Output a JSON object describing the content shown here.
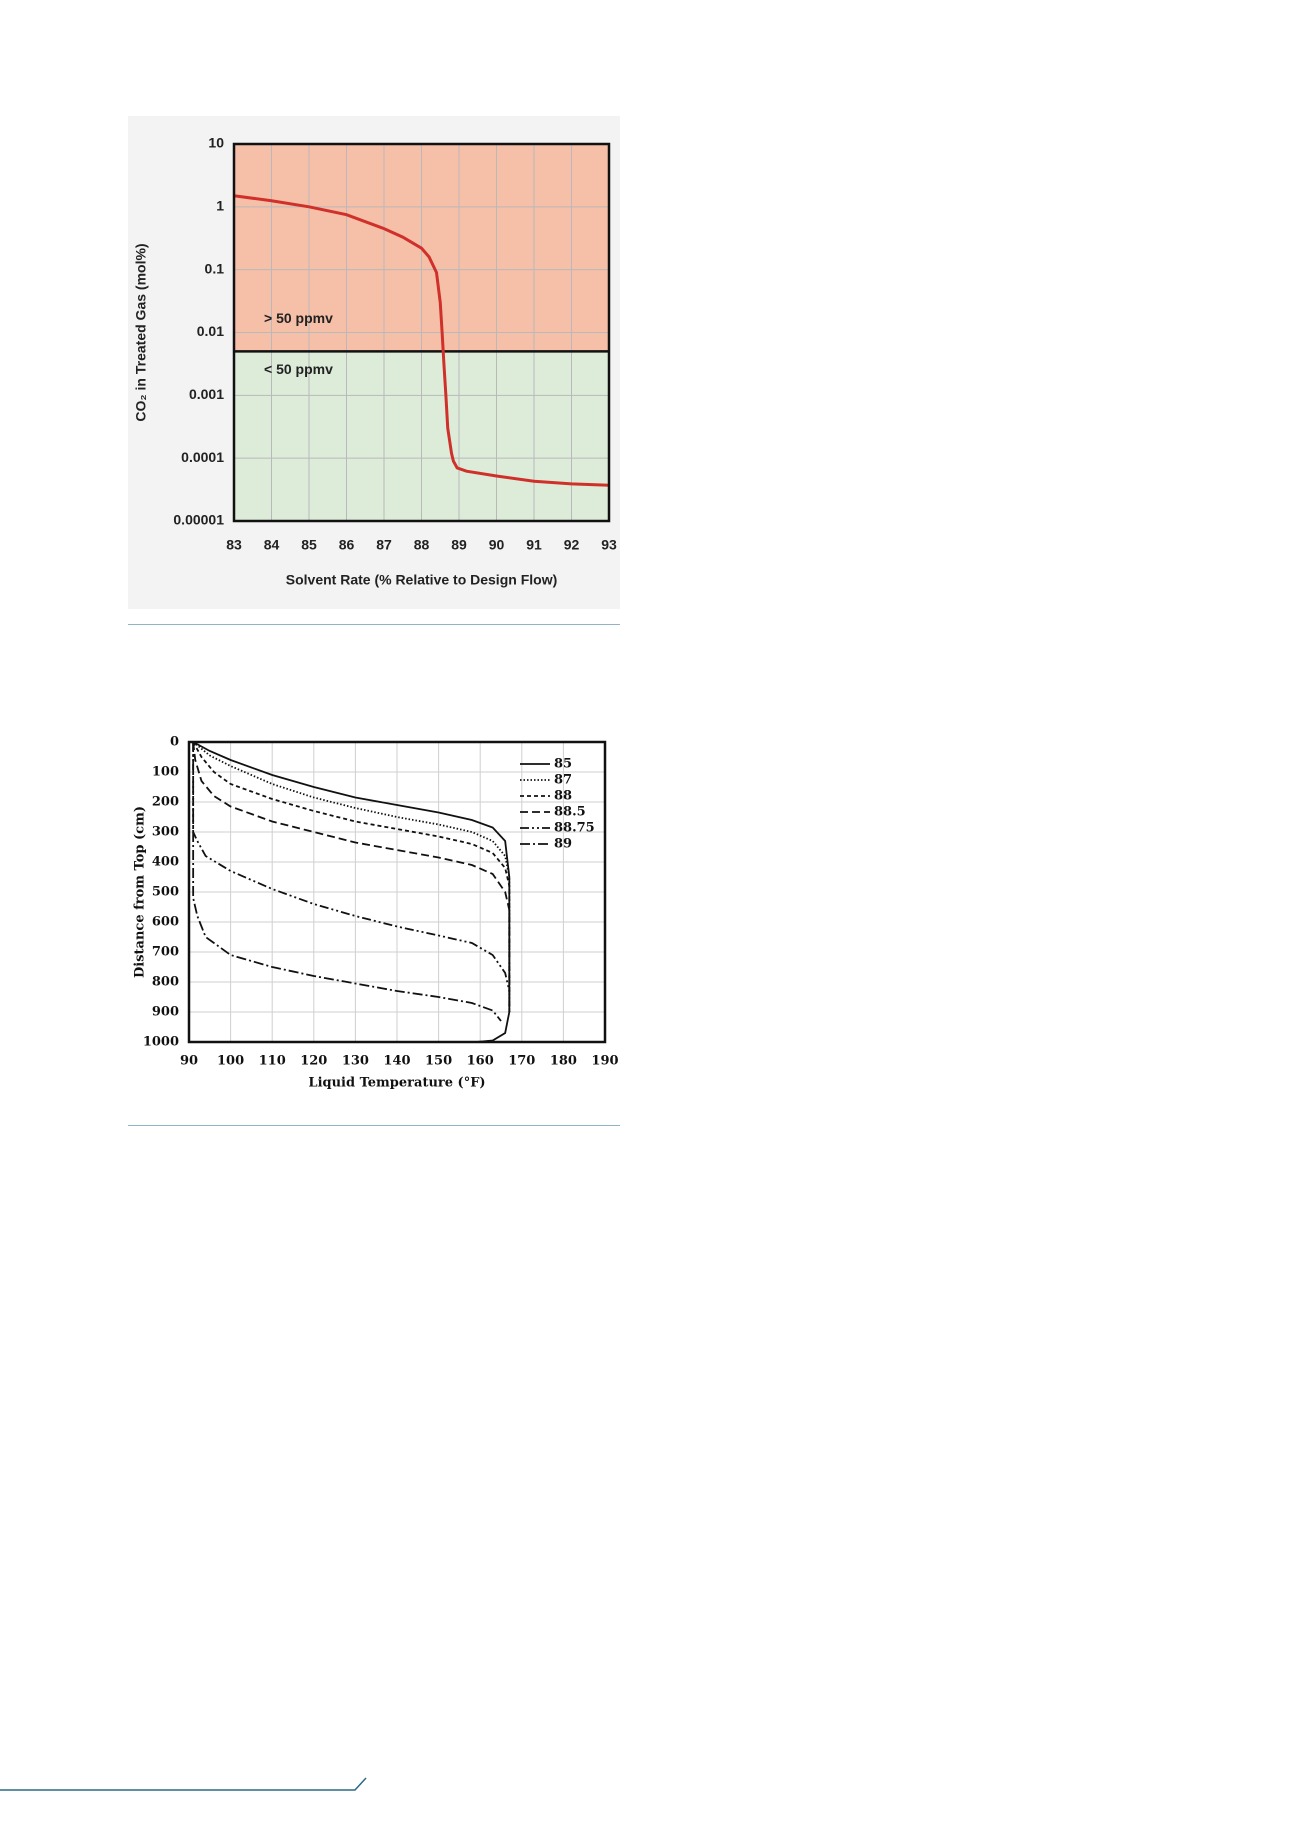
{
  "chart_data": [
    {
      "type": "line",
      "x_label": "Solvent Rate (% Relative to Design Flow)",
      "y_label": "CO₂ in Treated Gas (mol%)",
      "x": [
        83,
        84,
        85,
        86,
        87,
        87.5,
        88,
        88.2,
        88.4,
        88.5,
        88.55,
        88.6,
        88.65,
        88.7,
        88.8,
        88.85,
        88.95,
        89.2,
        90,
        91,
        92,
        93
      ],
      "values": [
        1.5,
        1.25,
        1.0,
        0.75,
        0.45,
        0.33,
        0.22,
        0.16,
        0.09,
        0.03,
        0.01,
        0.003,
        0.001,
        0.0003,
        0.00012,
        9e-05,
        7e-05,
        6.2e-05,
        5.2e-05,
        4.3e-05,
        3.9e-05,
        3.7e-05
      ],
      "color": "#d0302a",
      "xlim": [
        83,
        93
      ],
      "xticks": [
        83,
        84,
        85,
        86,
        87,
        88,
        89,
        90,
        91,
        92,
        93
      ],
      "ylim": [
        1e-05,
        10
      ],
      "yticks": [
        1e-05,
        0.0001,
        0.001,
        0.01,
        0.1,
        1,
        10
      ],
      "y_log": true,
      "grid": true,
      "threshold": 0.005,
      "above_label": "> 50 ppmv",
      "below_label": "< 50 ppmv",
      "above_color": "#f6bfa8",
      "below_color": "#dcecd9"
    },
    {
      "type": "line",
      "x_label": "Liquid Temperature (°F)",
      "y_label": "Distance from Top (cm)",
      "xlim": [
        90,
        190
      ],
      "xticks": [
        90,
        100,
        110,
        120,
        130,
        140,
        150,
        160,
        170,
        180,
        190
      ],
      "ylim": [
        1000,
        0
      ],
      "yticks": [
        0,
        100,
        200,
        300,
        400,
        500,
        600,
        700,
        800,
        900,
        1000
      ],
      "grid": true,
      "legend": "upper right",
      "series": [
        {
          "name": "85",
          "color": "#111111",
          "style": "solid",
          "x": [
            91,
            95,
            100,
            110,
            120,
            130,
            140,
            150,
            158,
            163,
            166,
            167,
            167,
            166,
            163,
            159
          ],
          "values": [
            0,
            30,
            60,
            110,
            150,
            185,
            210,
            235,
            260,
            285,
            330,
            450,
            900,
            970,
            995,
            1000
          ]
        },
        {
          "name": "87",
          "color": "#111111",
          "style": "dotted",
          "x": [
            91,
            95,
            100,
            110,
            120,
            130,
            140,
            150,
            158,
            163,
            166,
            167,
            167
          ],
          "values": [
            0,
            45,
            80,
            140,
            185,
            220,
            250,
            275,
            300,
            330,
            380,
            450,
            900
          ]
        },
        {
          "name": "88",
          "color": "#111111",
          "style": "short-dash",
          "x": [
            91,
            93,
            96,
            100,
            110,
            120,
            130,
            140,
            150,
            158,
            163,
            166,
            167,
            167
          ],
          "values": [
            0,
            50,
            100,
            140,
            190,
            230,
            265,
            290,
            315,
            340,
            370,
            420,
            480,
            900
          ]
        },
        {
          "name": "88.5",
          "color": "#111111",
          "style": "dashed",
          "x": [
            91,
            91.5,
            93,
            96,
            100,
            110,
            120,
            130,
            140,
            150,
            158,
            163,
            166,
            167,
            167
          ],
          "values": [
            0,
            60,
            130,
            180,
            215,
            265,
            300,
            335,
            360,
            385,
            410,
            440,
            500,
            560,
            900
          ]
        },
        {
          "name": "88.75",
          "color": "#111111",
          "style": "dash-dot-dot",
          "x": [
            91,
            91,
            92,
            94,
            100,
            110,
            120,
            130,
            140,
            150,
            158,
            163,
            166,
            167
          ],
          "values": [
            0,
            300,
            330,
            380,
            430,
            490,
            540,
            580,
            615,
            645,
            670,
            710,
            770,
            830
          ]
        },
        {
          "name": "89",
          "color": "#111111",
          "style": "dash-dot",
          "x": [
            91,
            91,
            92,
            94,
            100,
            110,
            120,
            130,
            140,
            150,
            158,
            163,
            165
          ],
          "values": [
            0,
            520,
            580,
            650,
            710,
            750,
            780,
            805,
            830,
            850,
            870,
            895,
            930
          ]
        }
      ]
    }
  ]
}
